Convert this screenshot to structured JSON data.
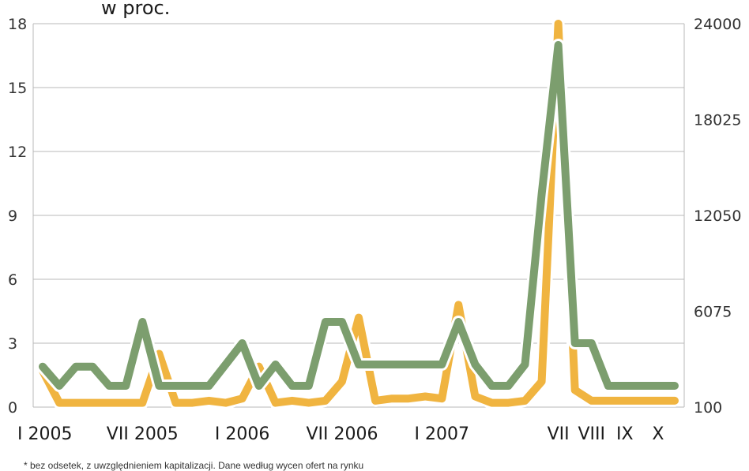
{
  "chart_data": {
    "type": "line",
    "unit_label": "w proc.",
    "footnote": "* bez odsetek, z uwzględnieniem kapitalizacji. Dane według wycen ofert na rynku",
    "x_tick_labels": [
      "I 2005",
      "VII 2005",
      "I 2006",
      "VII 2006",
      "I 2007",
      "VII",
      "VIII",
      "IX",
      "X"
    ],
    "y_left": {
      "min": 0,
      "max": 18,
      "ticks": [
        "0",
        "3",
        "6",
        "9",
        "12",
        "15",
        "18"
      ]
    },
    "y_right": {
      "min": 100,
      "max": 24000,
      "ticks": [
        "100",
        "6075",
        "12050",
        "18025",
        "24000"
      ]
    },
    "x": [
      0,
      1,
      2,
      3,
      4,
      5,
      6,
      7,
      8,
      9,
      10,
      11,
      12,
      13,
      14,
      15,
      16,
      17,
      18,
      19,
      20,
      21,
      22,
      23,
      24,
      25,
      26,
      27,
      28,
      29,
      30,
      31,
      32,
      33,
      34,
      35,
      36,
      37,
      38
    ],
    "series": [
      {
        "axis": "left",
        "color": "#f0b440",
        "values": [
          1.7,
          0.2,
          0.2,
          0.2,
          0.2,
          0.2,
          0.2,
          2.5,
          0.2,
          0.2,
          0.3,
          0.2,
          0.4,
          1.9,
          0.2,
          0.3,
          0.2,
          0.3,
          1.2,
          4.2,
          0.3,
          0.4,
          0.4,
          0.5,
          0.4,
          4.8,
          0.5,
          0.2,
          0.2,
          0.3,
          1.2,
          18.0,
          0.8,
          0.3,
          0.3,
          0.3,
          0.3,
          0.3,
          0.3
        ]
      },
      {
        "axis": "left",
        "color": "#7c9e6e",
        "values": [
          1.9,
          1.0,
          1.9,
          1.9,
          1.0,
          1.0,
          4.0,
          1.0,
          1.0,
          1.0,
          1.0,
          2.0,
          3.0,
          1.0,
          2.0,
          1.0,
          1.0,
          4.0,
          4.0,
          2.0,
          2.0,
          2.0,
          2.0,
          2.0,
          2.0,
          4.0,
          2.0,
          1.0,
          1.0,
          2.0,
          10.0,
          17.0,
          3.0,
          3.0,
          1.0,
          1.0,
          1.0,
          1.0,
          1.0
        ]
      }
    ],
    "grid": true,
    "legend": "none"
  }
}
